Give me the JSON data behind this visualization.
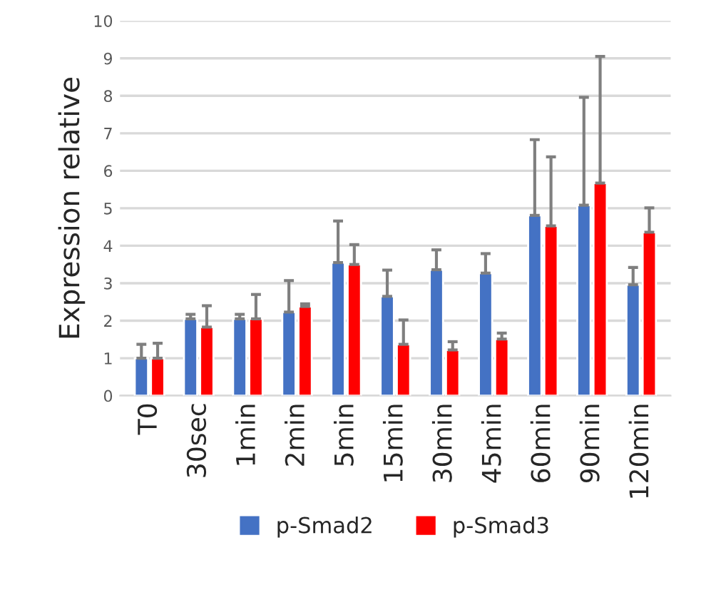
{
  "chart_data": {
    "type": "bar",
    "ylabel": "Expression relative",
    "categories": [
      "T0",
      "30sec",
      "1min",
      "2min",
      "5min",
      "15min",
      "30min",
      "45min",
      "60min",
      "90min",
      "120min"
    ],
    "series": [
      {
        "name": "p-Smad2",
        "color": "#4472c4",
        "values": [
          1.0,
          2.05,
          2.05,
          2.23,
          3.55,
          2.65,
          3.36,
          3.27,
          4.81,
          5.08,
          2.96
        ],
        "errors": [
          [
            1.0,
            1.37
          ],
          [
            2.05,
            2.17
          ],
          [
            2.05,
            2.17
          ],
          [
            2.23,
            3.07
          ],
          [
            3.55,
            4.66
          ],
          [
            2.65,
            3.35
          ],
          [
            3.36,
            3.89
          ],
          [
            3.27,
            3.79
          ],
          [
            4.81,
            6.83
          ],
          [
            5.08,
            7.96
          ],
          [
            2.96,
            3.42
          ]
        ]
      },
      {
        "name": "p-Smad3",
        "color": "#ff0000",
        "values": [
          1.0,
          1.83,
          2.05,
          2.38,
          3.5,
          1.37,
          1.22,
          1.51,
          4.53,
          5.67,
          4.36
        ],
        "errors": [
          [
            1.0,
            1.4
          ],
          [
            1.83,
            2.4
          ],
          [
            2.05,
            2.7
          ],
          [
            2.38,
            2.45
          ],
          [
            3.5,
            4.03
          ],
          [
            1.37,
            2.02
          ],
          [
            1.22,
            1.44
          ],
          [
            1.51,
            1.67
          ],
          [
            4.53,
            6.37
          ],
          [
            5.67,
            9.05
          ],
          [
            4.36,
            5.01
          ]
        ]
      }
    ],
    "ylim": [
      0,
      10
    ],
    "yticks": [
      0,
      1,
      2,
      3,
      4,
      5,
      6,
      7,
      8,
      9,
      10
    ],
    "grid": "y",
    "legend": "bottom"
  }
}
